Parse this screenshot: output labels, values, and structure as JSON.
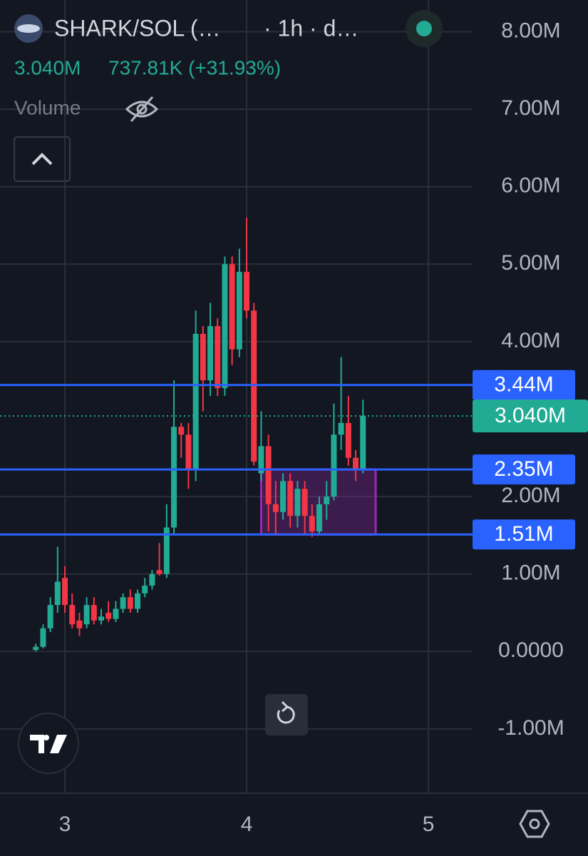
{
  "chart_data": {
    "type": "candlestick",
    "header": {
      "symbol": "SHARK/SOL (…",
      "interval": "· 1h · d…",
      "price": "3.040M",
      "change": "737.81K (+31.93%)",
      "volume_label": "Volume"
    },
    "x": [
      2.84,
      2.88,
      2.92,
      2.96,
      3.0,
      3.04,
      3.08,
      3.12,
      3.16,
      3.2,
      3.24,
      3.28,
      3.32,
      3.36,
      3.4,
      3.44,
      3.48,
      3.52,
      3.56,
      3.6,
      3.64,
      3.68,
      3.72,
      3.76,
      3.8,
      3.84,
      3.88,
      3.92,
      3.96,
      4.0,
      4.04,
      4.08,
      4.12,
      4.16,
      4.2,
      4.24,
      4.28,
      4.32,
      4.36,
      4.4,
      4.44,
      4.48,
      4.52,
      4.56,
      4.6,
      4.64
    ],
    "open": [
      0.02,
      0.06,
      0.3,
      0.6,
      0.95,
      0.6,
      0.4,
      0.35,
      0.6,
      0.4,
      0.5,
      0.42,
      0.55,
      0.7,
      0.55,
      0.75,
      0.85,
      1.05,
      1.0,
      1.6,
      2.9,
      2.8,
      2.35,
      4.1,
      3.5,
      4.2,
      3.4,
      5.0,
      3.9,
      4.9,
      4.4,
      2.3,
      2.65,
      1.9,
      1.8,
      2.2,
      1.75,
      2.1,
      1.75,
      1.55,
      1.9,
      2.0,
      2.8,
      2.95,
      2.5,
      2.35
    ],
    "high": [
      0.1,
      0.35,
      0.7,
      1.35,
      1.1,
      0.75,
      0.5,
      0.7,
      0.7,
      0.55,
      0.65,
      0.65,
      0.75,
      0.8,
      0.8,
      0.95,
      1.05,
      1.4,
      1.9,
      3.5,
      2.95,
      2.95,
      4.4,
      4.2,
      4.5,
      4.3,
      5.1,
      5.1,
      5.2,
      5.6,
      4.5,
      3.1,
      2.8,
      2.2,
      2.3,
      2.3,
      2.2,
      2.2,
      1.9,
      2.0,
      2.2,
      3.2,
      3.8,
      3.3,
      2.6,
      3.25
    ],
    "low": [
      0.0,
      0.04,
      0.25,
      0.5,
      0.5,
      0.3,
      0.2,
      0.3,
      0.35,
      0.35,
      0.38,
      0.38,
      0.5,
      0.5,
      0.5,
      0.7,
      0.8,
      0.98,
      0.95,
      1.5,
      2.5,
      2.1,
      2.2,
      3.1,
      3.3,
      3.3,
      3.3,
      3.7,
      3.8,
      4.3,
      2.4,
      2.2,
      1.55,
      1.5,
      1.7,
      1.6,
      1.6,
      1.5,
      1.48,
      1.5,
      1.7,
      1.95,
      2.6,
      2.4,
      2.2,
      2.3
    ],
    "close": [
      0.06,
      0.3,
      0.6,
      0.9,
      0.6,
      0.35,
      0.3,
      0.6,
      0.4,
      0.45,
      0.42,
      0.55,
      0.7,
      0.55,
      0.75,
      0.85,
      1.0,
      1.0,
      1.6,
      2.9,
      2.8,
      2.35,
      4.1,
      3.5,
      4.2,
      3.4,
      5.0,
      3.9,
      4.9,
      4.4,
      2.45,
      2.65,
      1.9,
      1.8,
      2.2,
      1.75,
      2.1,
      1.75,
      1.55,
      1.9,
      2.0,
      2.8,
      2.95,
      2.5,
      2.35,
      3.04
    ],
    "up_color": "#22ab94",
    "down_color": "#f23645",
    "xlim": [
      2.643,
      5.243
    ],
    "xticks": [
      3,
      4,
      5
    ],
    "ylim": [
      -1.83,
      8.41
    ],
    "yticks": [
      {
        "value": -1,
        "label": "-1.00M"
      },
      {
        "value": 0,
        "label": "0.0000"
      },
      {
        "value": 1,
        "label": "1.00M"
      },
      {
        "value": 2,
        "label": "2.00M"
      },
      {
        "value": 4,
        "label": "4.00M"
      },
      {
        "value": 5,
        "label": "5.00M"
      },
      {
        "value": 6,
        "label": "6.00M"
      },
      {
        "value": 7,
        "label": "7.00M"
      },
      {
        "value": 8,
        "label": "8.00M"
      }
    ],
    "grid": true,
    "hlines": [
      {
        "value": 3.44,
        "label": "3.44M",
        "color": "#2962ff"
      },
      {
        "value": 2.35,
        "label": "2.35M",
        "color": "#2962ff"
      },
      {
        "value": 1.51,
        "label": "1.51M",
        "color": "#2962ff"
      }
    ],
    "last_price": {
      "value": 3.04,
      "label": "3.040M",
      "color": "#22ab94"
    },
    "rectangle": {
      "x": [
        4.08,
        4.71
      ],
      "y": [
        1.51,
        2.35
      ],
      "color": "#9c27b0"
    }
  }
}
